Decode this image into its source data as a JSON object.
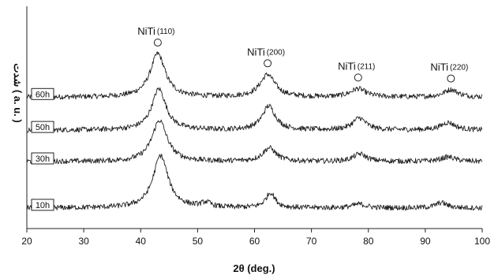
{
  "chart_data": {
    "type": "line",
    "xlabel": "2θ (deg.)",
    "ylabel": "شدت ( a. u. )",
    "xlim": [
      20,
      100
    ],
    "xticks": [
      "20",
      "30",
      "40",
      "50",
      "60",
      "70",
      "80",
      "90",
      "100"
    ],
    "grid": false,
    "series": [
      {
        "name": "60h",
        "baseline": 0.86,
        "peaks": [
          {
            "x": 43,
            "h": 0.58,
            "w": 1.6
          },
          {
            "x": 62.3,
            "h": 0.3,
            "w": 1.6
          },
          {
            "x": 78.2,
            "h": 0.11,
            "w": 1.6
          },
          {
            "x": 94.5,
            "h": 0.1,
            "w": 1.5
          }
        ]
      },
      {
        "name": "50h",
        "baseline": 0.42,
        "peaks": [
          {
            "x": 43.2,
            "h": 0.55,
            "w": 1.5
          },
          {
            "x": 62.5,
            "h": 0.32,
            "w": 1.4
          },
          {
            "x": 78.4,
            "h": 0.16,
            "w": 1.4
          },
          {
            "x": 94,
            "h": 0.1,
            "w": 1.5
          }
        ]
      },
      {
        "name": "30h",
        "baseline": 0.0,
        "peaks": [
          {
            "x": 43.3,
            "h": 0.55,
            "w": 1.6
          },
          {
            "x": 62.6,
            "h": 0.18,
            "w": 1.4
          },
          {
            "x": 78.5,
            "h": 0.1,
            "w": 1.4
          },
          {
            "x": 94,
            "h": 0.06,
            "w": 1.5
          }
        ]
      },
      {
        "name": "10h",
        "baseline": -0.62,
        "peaks": [
          {
            "x": 43.5,
            "h": 0.7,
            "w": 1.6
          },
          {
            "x": 51.5,
            "h": 0.06,
            "w": 1.0
          },
          {
            "x": 62.8,
            "h": 0.2,
            "w": 1.0
          },
          {
            "x": 78.4,
            "h": 0.05,
            "w": 1.4
          },
          {
            "x": 92.8,
            "h": 0.07,
            "w": 1.2
          }
        ]
      }
    ],
    "annotations": [
      {
        "name": "NiTi",
        "index": "(110)",
        "x": 43
      },
      {
        "name": "NiTi",
        "index": "(200)",
        "x": 62.3
      },
      {
        "name": "NiTi",
        "index": "(211)",
        "x": 78.2
      },
      {
        "name": "NiTi",
        "index": "(220)",
        "x": 94.5
      }
    ]
  }
}
